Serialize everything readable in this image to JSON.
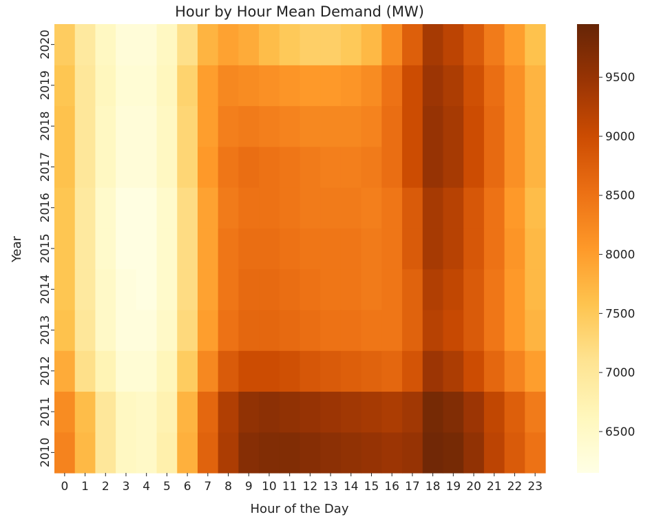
{
  "chart_data": {
    "type": "heatmap",
    "title": "Hour by Hour Mean Demand (MW)",
    "xlabel": "Hour of the Day",
    "ylabel": "Year",
    "x": [
      "0",
      "1",
      "2",
      "3",
      "4",
      "5",
      "6",
      "7",
      "8",
      "9",
      "10",
      "11",
      "12",
      "13",
      "14",
      "15",
      "16",
      "17",
      "18",
      "19",
      "20",
      "21",
      "22",
      "23"
    ],
    "y": [
      "2010",
      "2011",
      "2012",
      "2013",
      "2014",
      "2015",
      "2016",
      "2017",
      "2018",
      "2019",
      "2020"
    ],
    "values": [
      [
        8300,
        7700,
        7000,
        6550,
        6500,
        6800,
        7800,
        8700,
        9300,
        9650,
        9700,
        9700,
        9650,
        9600,
        9550,
        9500,
        9450,
        9500,
        9850,
        9800,
        9550,
        9150,
        8800,
        8500
      ],
      [
        8200,
        7650,
        7000,
        6550,
        6500,
        6750,
        7750,
        8650,
        9250,
        9550,
        9600,
        9550,
        9500,
        9450,
        9400,
        9350,
        9300,
        9400,
        9800,
        9700,
        9450,
        9100,
        8750,
        8400
      ],
      [
        7850,
        7150,
        6700,
        6350,
        6350,
        6650,
        7450,
        8250,
        8800,
        9000,
        9000,
        8950,
        8850,
        8800,
        8750,
        8700,
        8650,
        8900,
        9450,
        9300,
        9000,
        8650,
        8300,
        8000
      ],
      [
        7600,
        7000,
        6500,
        6250,
        6250,
        6500,
        7250,
        8000,
        8500,
        8650,
        8650,
        8600,
        8550,
        8500,
        8500,
        8450,
        8450,
        8700,
        9200,
        9050,
        8800,
        8450,
        8050,
        7750
      ],
      [
        7550,
        6950,
        6500,
        6250,
        6200,
        6450,
        7200,
        7950,
        8450,
        8600,
        8600,
        8550,
        8500,
        8450,
        8450,
        8400,
        8450,
        8700,
        9250,
        9100,
        8800,
        8450,
        8050,
        7700
      ],
      [
        7550,
        6950,
        6450,
        6200,
        6200,
        6450,
        7200,
        7950,
        8450,
        8550,
        8550,
        8500,
        8450,
        8450,
        8450,
        8400,
        8450,
        8800,
        9350,
        9200,
        8850,
        8500,
        8100,
        7700
      ],
      [
        7550,
        6950,
        6450,
        6200,
        6200,
        6450,
        7200,
        7950,
        8400,
        8500,
        8500,
        8450,
        8400,
        8400,
        8400,
        8350,
        8450,
        8800,
        9350,
        9200,
        8850,
        8500,
        8050,
        7650
      ],
      [
        7600,
        7000,
        6550,
        6300,
        6300,
        6550,
        7300,
        8050,
        8450,
        8550,
        8500,
        8450,
        8400,
        8350,
        8350,
        8400,
        8550,
        9000,
        9500,
        9350,
        9000,
        8600,
        8150,
        7750
      ],
      [
        7600,
        7000,
        6550,
        6300,
        6300,
        6550,
        7300,
        8000,
        8350,
        8400,
        8350,
        8300,
        8250,
        8250,
        8250,
        8300,
        8550,
        9000,
        9500,
        9350,
        9000,
        8600,
        8150,
        7750
      ],
      [
        7550,
        7000,
        6600,
        6350,
        6350,
        6600,
        7350,
        8000,
        8250,
        8200,
        8150,
        8100,
        8050,
        8050,
        8100,
        8200,
        8500,
        9000,
        9450,
        9300,
        8950,
        8550,
        8150,
        7750
      ],
      [
        7450,
        6950,
        6550,
        6300,
        6300,
        6550,
        7150,
        7750,
        7950,
        7850,
        7650,
        7500,
        7400,
        7400,
        7500,
        7700,
        8200,
        8750,
        9350,
        9150,
        8800,
        8400,
        8000,
        7600
      ]
    ],
    "colorbar": {
      "min": 6150,
      "max": 9950,
      "ticks": [
        "6500",
        "7000",
        "7500",
        "8000",
        "8500",
        "9000",
        "9500"
      ],
      "colormap": "YlOrBr"
    },
    "grid": false
  }
}
